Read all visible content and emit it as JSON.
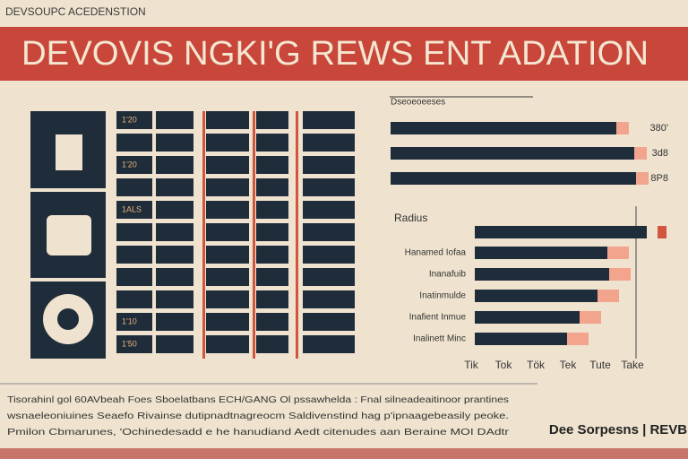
{
  "header": {
    "kicker": "DEVSOUPC ACEDENSTION",
    "title": "DEVOVIS NGKI'G REWS ENT ADATION"
  },
  "table": {
    "row_labels": [
      "1'20",
      "1'20",
      "1ALS",
      "1'10",
      "1'50"
    ]
  },
  "top_chart": {
    "title": "Dseoeoeeses",
    "labels": [
      "380'",
      "3d8",
      "8P8"
    ]
  },
  "bottom_chart": {
    "title": "Radius",
    "labels": [
      "Hanamed Iofaa",
      "Inanafuib",
      "Inatinmulde",
      "Inafient Inmue",
      "Inalinett Minc"
    ],
    "axis_labels": [
      "Tik",
      "Tok",
      "Tök",
      "Tek",
      "Tute",
      "Take"
    ]
  },
  "footer": {
    "lines": [
      "Tisorahinl gol 60AVbeah Foes Sboelatbans ECH/GANG Ol pssawhelda : Fnal silneadeaitinoor prantines",
      "wsnaeleoniuines Seaefo Rivainse dutipnadtnagreocm Saldivenstind hag p'ipnaagebeasily peoke.",
      "Pmilon Cbmarunes, 'Ochinedesadd e he hanudiand Aedt citenudes aan Beraine MOI DAdtr"
    ],
    "brand": "Dee Sorpesns | REVB"
  }
}
